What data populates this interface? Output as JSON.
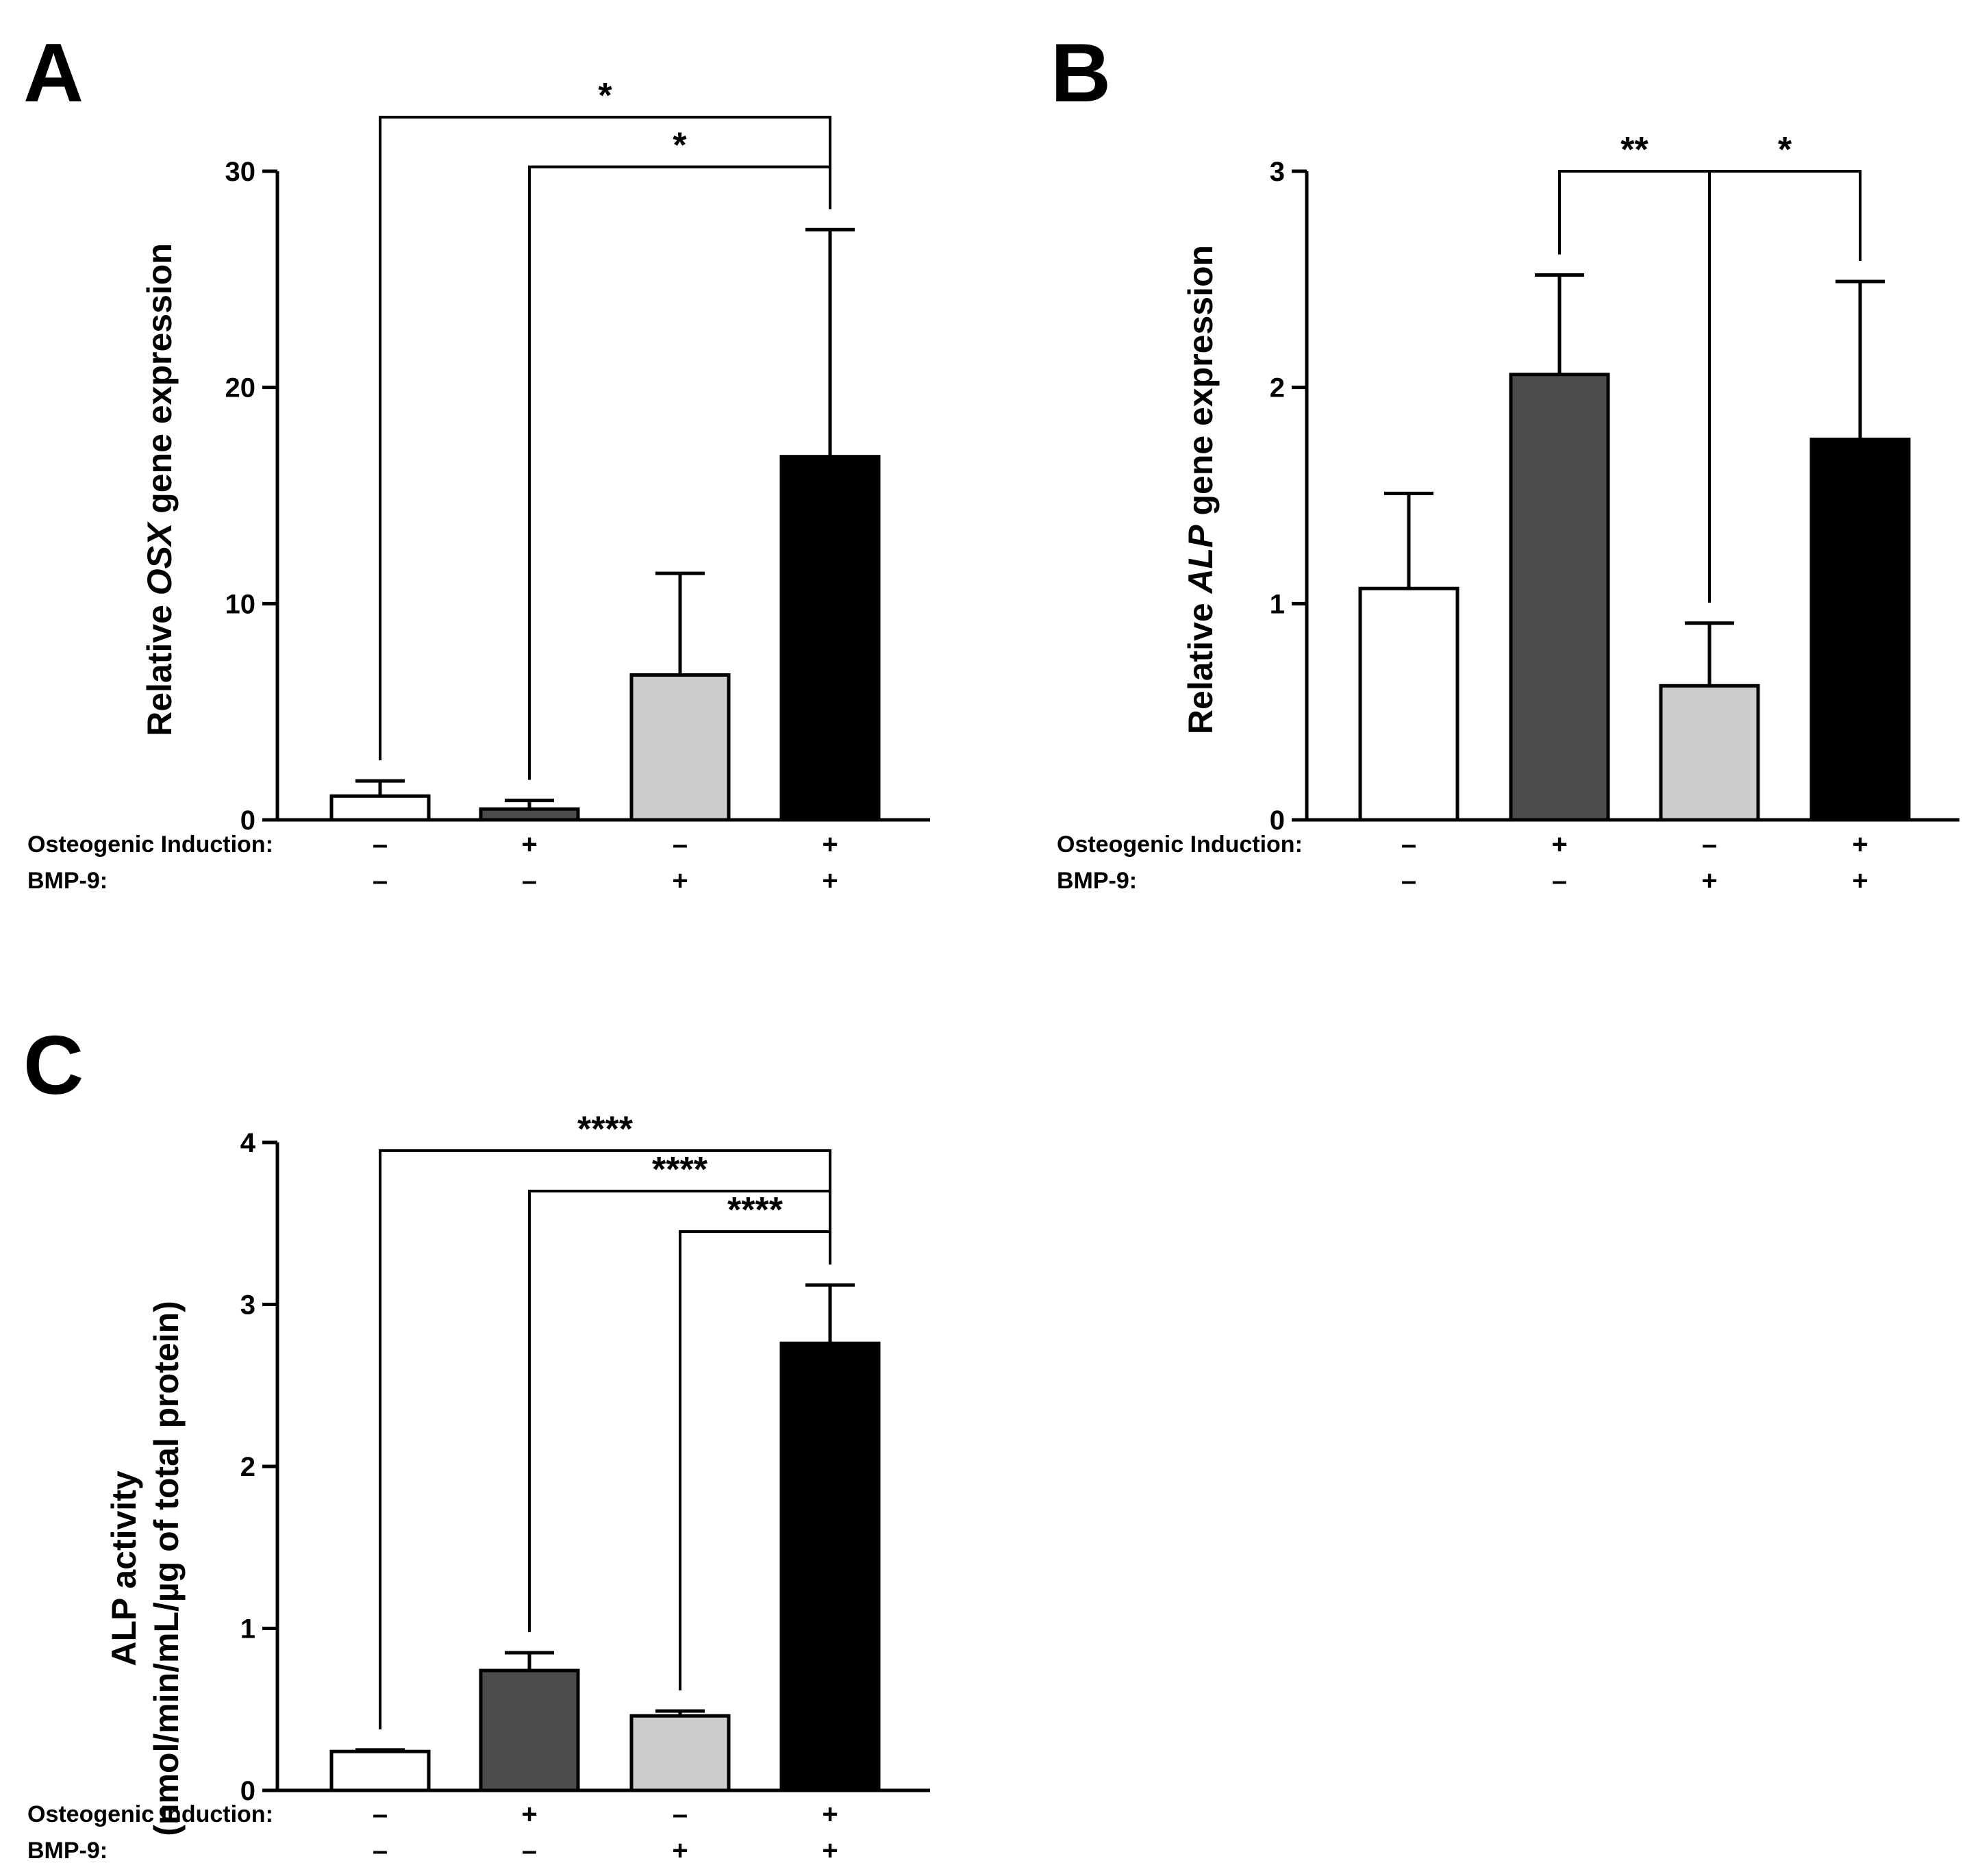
{
  "chart_data": [
    {
      "panel_label": "A",
      "type": "bar",
      "ylabel_parts": [
        {
          "text": "Relative ",
          "italic": false
        },
        {
          "text": "OSX",
          "italic": true
        },
        {
          "text": " gene expression",
          "italic": false
        }
      ],
      "ylim": [
        0,
        30
      ],
      "yticks": [
        "0",
        "10",
        "20",
        "30"
      ],
      "values": [
        1.1,
        0.5,
        6.7,
        16.8
      ],
      "errors": [
        0.7,
        0.4,
        4.7,
        10.5
      ],
      "colors": [
        "#ffffff",
        "#4d4d4d",
        "#cccccc",
        "#000000"
      ],
      "row_labels": [
        "Osteogenic Induction:",
        "BMP-9:"
      ],
      "induction": [
        "–",
        "+",
        "–",
        "+"
      ],
      "bmp9": [
        "–",
        "–",
        "+",
        "+"
      ],
      "brackets": [
        {
          "from": 0,
          "to": 3,
          "level": 32.5,
          "label": "*"
        },
        {
          "from": 1,
          "to": 3,
          "level": 30.2,
          "label": "*"
        }
      ]
    },
    {
      "panel_label": "B",
      "type": "bar",
      "ylabel_parts": [
        {
          "text": "Relative ",
          "italic": false
        },
        {
          "text": "ALP",
          "italic": true
        },
        {
          "text": " gene expression",
          "italic": false
        }
      ],
      "ylim": [
        0,
        3
      ],
      "yticks": [
        "0",
        "1",
        "2",
        "3"
      ],
      "values": [
        1.07,
        2.06,
        0.62,
        1.76
      ],
      "errors": [
        0.44,
        0.46,
        0.29,
        0.73
      ],
      "colors": [
        "#ffffff",
        "#4d4d4d",
        "#cccccc",
        "#000000"
      ],
      "row_labels": [
        "Osteogenic Induction:",
        "BMP-9:"
      ],
      "induction": [
        "–",
        "+",
        "–",
        "+"
      ],
      "bmp9": [
        "–",
        "–",
        "+",
        "+"
      ],
      "brackets": [
        {
          "from": 1,
          "to": 2,
          "level": 3.0,
          "label": "**"
        },
        {
          "from": 2,
          "to": 3,
          "level": 3.0,
          "label": "*"
        }
      ]
    },
    {
      "panel_label": "C",
      "type": "bar",
      "ylabel_lines": [
        "ALP activity",
        "(nmol/min/mL/µg of total protein)"
      ],
      "ylim": [
        0,
        4
      ],
      "yticks": [
        "0",
        "1",
        "2",
        "3",
        "4"
      ],
      "values": [
        0.24,
        0.74,
        0.46,
        2.76
      ],
      "errors": [
        0.01,
        0.11,
        0.03,
        0.36
      ],
      "colors": [
        "#ffffff",
        "#4d4d4d",
        "#cccccc",
        "#000000"
      ],
      "row_labels": [
        "Osteogenic Induction:",
        "BMP-9:"
      ],
      "induction": [
        "–",
        "+",
        "–",
        "+"
      ],
      "bmp9": [
        "–",
        "–",
        "+",
        "+"
      ],
      "brackets": [
        {
          "from": 0,
          "to": 3,
          "level": 3.95,
          "label": "****"
        },
        {
          "from": 1,
          "to": 3,
          "level": 3.7,
          "label": "****"
        },
        {
          "from": 2,
          "to": 3,
          "level": 3.45,
          "label": "****"
        }
      ]
    }
  ]
}
